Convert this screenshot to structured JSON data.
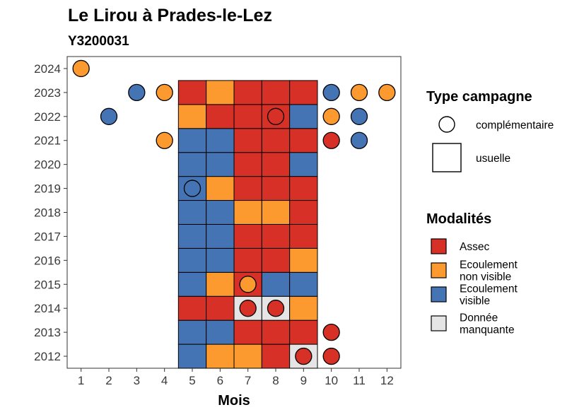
{
  "chart_data": {
    "type": "heatmap",
    "title": "Le Lirou à Prades-le-Lez",
    "subtitle": "Y3200031",
    "xlabel": "Mois",
    "ylabel": "",
    "x_categories": [
      "1",
      "2",
      "3",
      "4",
      "5",
      "6",
      "7",
      "8",
      "9",
      "10",
      "11",
      "12"
    ],
    "y_categories": [
      "2012",
      "2013",
      "2014",
      "2015",
      "2016",
      "2017",
      "2018",
      "2019",
      "2020",
      "2021",
      "2022",
      "2023",
      "2024"
    ],
    "colors": {
      "Assec": "#d73027",
      "Ecoulement non visible": "#fd9a2f",
      "Ecoulement visible": "#4574b4",
      "Donnée manquante": "#e5e5e5"
    },
    "usuelle": [
      {
        "year": "2012",
        "values": [
          "Ecoulement visible",
          "Ecoulement non visible",
          "Ecoulement non visible",
          "Assec",
          "Donnée manquante"
        ]
      },
      {
        "year": "2013",
        "values": [
          "Ecoulement visible",
          "Ecoulement visible",
          "Assec",
          "Assec",
          "Assec"
        ]
      },
      {
        "year": "2014",
        "values": [
          "Assec",
          "Assec",
          "Donnée manquante",
          "Donnée manquante",
          "Ecoulement non visible"
        ]
      },
      {
        "year": "2015",
        "values": [
          "Ecoulement visible",
          "Ecoulement non visible",
          "Assec",
          "Ecoulement visible",
          "Ecoulement visible"
        ]
      },
      {
        "year": "2016",
        "values": [
          "Ecoulement visible",
          "Ecoulement visible",
          "Assec",
          "Assec",
          "Ecoulement non visible"
        ]
      },
      {
        "year": "2017",
        "values": [
          "Ecoulement visible",
          "Ecoulement visible",
          "Assec",
          "Assec",
          "Assec"
        ]
      },
      {
        "year": "2018",
        "values": [
          "Ecoulement visible",
          "Ecoulement visible",
          "Ecoulement non visible",
          "Ecoulement non visible",
          "Assec"
        ]
      },
      {
        "year": "2019",
        "values": [
          "Ecoulement visible",
          "Ecoulement non visible",
          "Assec",
          "Assec",
          "Assec"
        ]
      },
      {
        "year": "2020",
        "values": [
          "Ecoulement visible",
          "Ecoulement visible",
          "Assec",
          "Assec",
          "Ecoulement visible"
        ]
      },
      {
        "year": "2021",
        "values": [
          "Ecoulement visible",
          "Ecoulement visible",
          "Assec",
          "Assec",
          "Assec"
        ]
      },
      {
        "year": "2022",
        "values": [
          "Ecoulement non visible",
          "Assec",
          "Assec",
          "Assec",
          "Ecoulement visible"
        ]
      },
      {
        "year": "2023",
        "values": [
          "Assec",
          "Ecoulement non visible",
          "Assec",
          "Assec",
          "Assec"
        ]
      }
    ],
    "usuelle_months": [
      "5",
      "6",
      "7",
      "8",
      "9"
    ],
    "complementaire": [
      {
        "year": "2024",
        "month": "1",
        "value": "Ecoulement non visible"
      },
      {
        "year": "2023",
        "month": "3",
        "value": "Ecoulement visible"
      },
      {
        "year": "2023",
        "month": "4",
        "value": "Ecoulement non visible"
      },
      {
        "year": "2023",
        "month": "10",
        "value": "Ecoulement visible"
      },
      {
        "year": "2023",
        "month": "11",
        "value": "Ecoulement non visible"
      },
      {
        "year": "2023",
        "month": "12",
        "value": "Ecoulement non visible"
      },
      {
        "year": "2022",
        "month": "2",
        "value": "Ecoulement visible"
      },
      {
        "year": "2022",
        "month": "8",
        "value": "Assec"
      },
      {
        "year": "2022",
        "month": "10",
        "value": "Ecoulement non visible"
      },
      {
        "year": "2022",
        "month": "11",
        "value": "Ecoulement visible"
      },
      {
        "year": "2021",
        "month": "4",
        "value": "Ecoulement non visible"
      },
      {
        "year": "2021",
        "month": "10",
        "value": "Assec"
      },
      {
        "year": "2021",
        "month": "11",
        "value": "Ecoulement visible"
      },
      {
        "year": "2019",
        "month": "5",
        "value": "Ecoulement visible"
      },
      {
        "year": "2015",
        "month": "7",
        "value": "Ecoulement non visible"
      },
      {
        "year": "2014",
        "month": "7",
        "value": "Assec"
      },
      {
        "year": "2014",
        "month": "8",
        "value": "Assec"
      },
      {
        "year": "2013",
        "month": "10",
        "value": "Assec"
      },
      {
        "year": "2012",
        "month": "9",
        "value": "Assec"
      },
      {
        "year": "2012",
        "month": "10",
        "value": "Assec"
      }
    ],
    "legend_type": {
      "title": "Type campagne",
      "items": [
        "complémentaire",
        "usuelle"
      ]
    },
    "legend_modalites": {
      "title": "Modalités",
      "items": [
        {
          "key": "Assec",
          "lines": [
            "Assec"
          ]
        },
        {
          "key": "Ecoulement non visible",
          "lines": [
            "Ecoulement",
            "non visible"
          ]
        },
        {
          "key": "Ecoulement visible",
          "lines": [
            "Ecoulement",
            "visible"
          ]
        },
        {
          "key": "Donnée manquante",
          "lines": [
            "Donnée",
            "manquante"
          ]
        }
      ]
    },
    "legend_placement": "right",
    "grid": false
  }
}
